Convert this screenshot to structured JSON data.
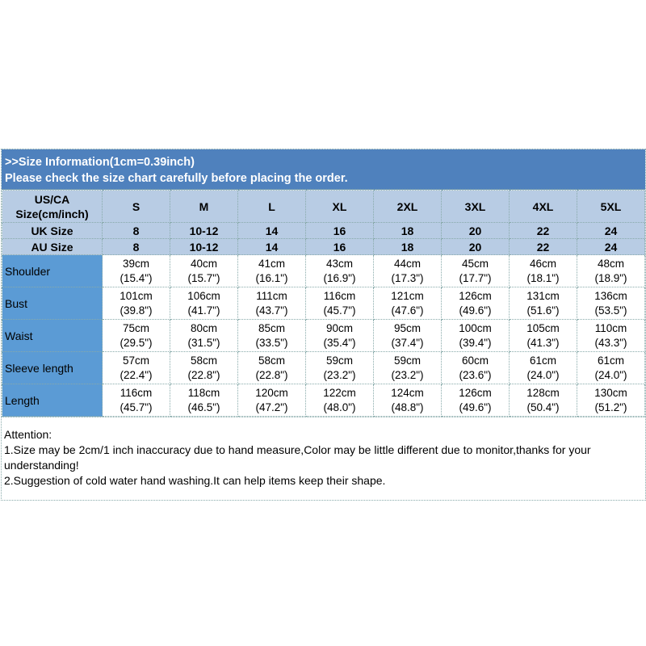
{
  "header": {
    "line1": ">>Size Information(1cm=0.39inch)",
    "line2": "Please check the size chart carefully before placing the order."
  },
  "size_rows": [
    {
      "label": "US/CA Size(cm/inch)",
      "values": [
        "S",
        "M",
        "L",
        "XL",
        "2XL",
        "3XL",
        "4XL",
        "5XL"
      ]
    },
    {
      "label": "UK Size",
      "values": [
        "8",
        "10-12",
        "14",
        "16",
        "18",
        "20",
        "22",
        "24"
      ]
    },
    {
      "label": "AU Size",
      "values": [
        "8",
        "10-12",
        "14",
        "16",
        "18",
        "20",
        "22",
        "24"
      ]
    }
  ],
  "measure_rows": [
    {
      "label": "Shoulder",
      "cm": [
        "39cm",
        "40cm",
        "41cm",
        "43cm",
        "44cm",
        "45cm",
        "46cm",
        "48cm"
      ],
      "inch": [
        "(15.4\")",
        "(15.7\")",
        "(16.1\")",
        "(16.9\")",
        "(17.3\")",
        "(17.7\")",
        "(18.1\")",
        "(18.9\")"
      ]
    },
    {
      "label": "Bust",
      "cm": [
        "101cm",
        "106cm",
        "111cm",
        "116cm",
        "121cm",
        "126cm",
        "131cm",
        "136cm"
      ],
      "inch": [
        "(39.8\")",
        "(41.7\")",
        "(43.7\")",
        "(45.7\")",
        "(47.6\")",
        "(49.6\")",
        "(51.6\")",
        "(53.5\")"
      ]
    },
    {
      "label": "Waist",
      "cm": [
        "75cm",
        "80cm",
        "85cm",
        "90cm",
        "95cm",
        "100cm",
        "105cm",
        "110cm"
      ],
      "inch": [
        "(29.5\")",
        "(31.5\")",
        "(33.5\")",
        "(35.4\")",
        "(37.4\")",
        "(39.4\")",
        "(41.3\")",
        "(43.3\")"
      ]
    },
    {
      "label": "Sleeve length",
      "cm": [
        "57cm",
        "58cm",
        "58cm",
        "59cm",
        "59cm",
        "60cm",
        "61cm",
        "61cm"
      ],
      "inch": [
        "(22.4\")",
        "(22.8\")",
        "(22.8\")",
        "(23.2\")",
        "(23.2\")",
        "(23.6\")",
        "(24.0\")",
        "(24.0\")"
      ]
    },
    {
      "label": "Length",
      "cm": [
        "116cm",
        "118cm",
        "120cm",
        "122cm",
        "124cm",
        "126cm",
        "128cm",
        "130cm"
      ],
      "inch": [
        "(45.7\")",
        "(46.5\")",
        "(47.2\")",
        "(48.0\")",
        "(48.8\")",
        "(49.6\")",
        "(50.4\")",
        "(51.2\")"
      ]
    }
  ],
  "notes": {
    "title": "Attention:",
    "items": [
      "1.Size may be 2cm/1 inch inaccuracy due to hand measure,Color may be little different due to monitor,thanks for your understanding!",
      "2.Suggestion of cold water hand washing.It can help items keep their shape."
    ]
  },
  "colors": {
    "header": "#4f81bd",
    "size_rows": "#b8cce4",
    "label_column": "#5b9bd5"
  }
}
